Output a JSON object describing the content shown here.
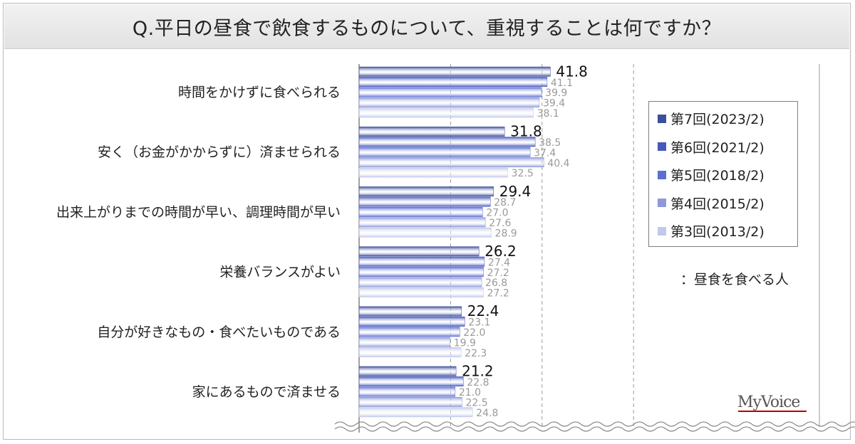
{
  "title": "Q.平日の昼食で飲食するものについて、重視することは何ですか？",
  "legend_note": "：昼食を食べる人",
  "logo": "MyVoice",
  "colors": [
    "#3b4f9a",
    "#4759bd",
    "#5b6fd3",
    "#8e9ad8",
    "#c3c9ea"
  ],
  "chart_data": {
    "type": "bar",
    "orientation": "horizontal",
    "categories": [
      "時間をかけずに食べられる",
      "安く（お金がかからずに）済ませられる",
      "出来上がりまでの時間が早い、調理時間が早い",
      "栄養バランスがよい",
      "自分が好きなもの・食べたいものである",
      "家にあるもので済ませる"
    ],
    "series": [
      {
        "name": "第7回(2023/2)",
        "values": [
          41.8,
          31.8,
          29.4,
          26.2,
          22.4,
          21.2
        ]
      },
      {
        "name": "第6回(2021/2)",
        "values": [
          41.1,
          38.5,
          28.7,
          27.4,
          23.1,
          22.8
        ]
      },
      {
        "name": "第5回(2018/2)",
        "values": [
          39.9,
          37.4,
          27.0,
          27.2,
          22.0,
          21.0
        ]
      },
      {
        "name": "第4回(2015/2)",
        "values": [
          39.4,
          40.4,
          27.6,
          26.8,
          19.9,
          22.5
        ]
      },
      {
        "name": "第3回(2013/2)",
        "values": [
          38.1,
          32.5,
          28.9,
          27.2,
          22.3,
          24.8
        ]
      }
    ],
    "legend_position": "right",
    "grid": true
  }
}
